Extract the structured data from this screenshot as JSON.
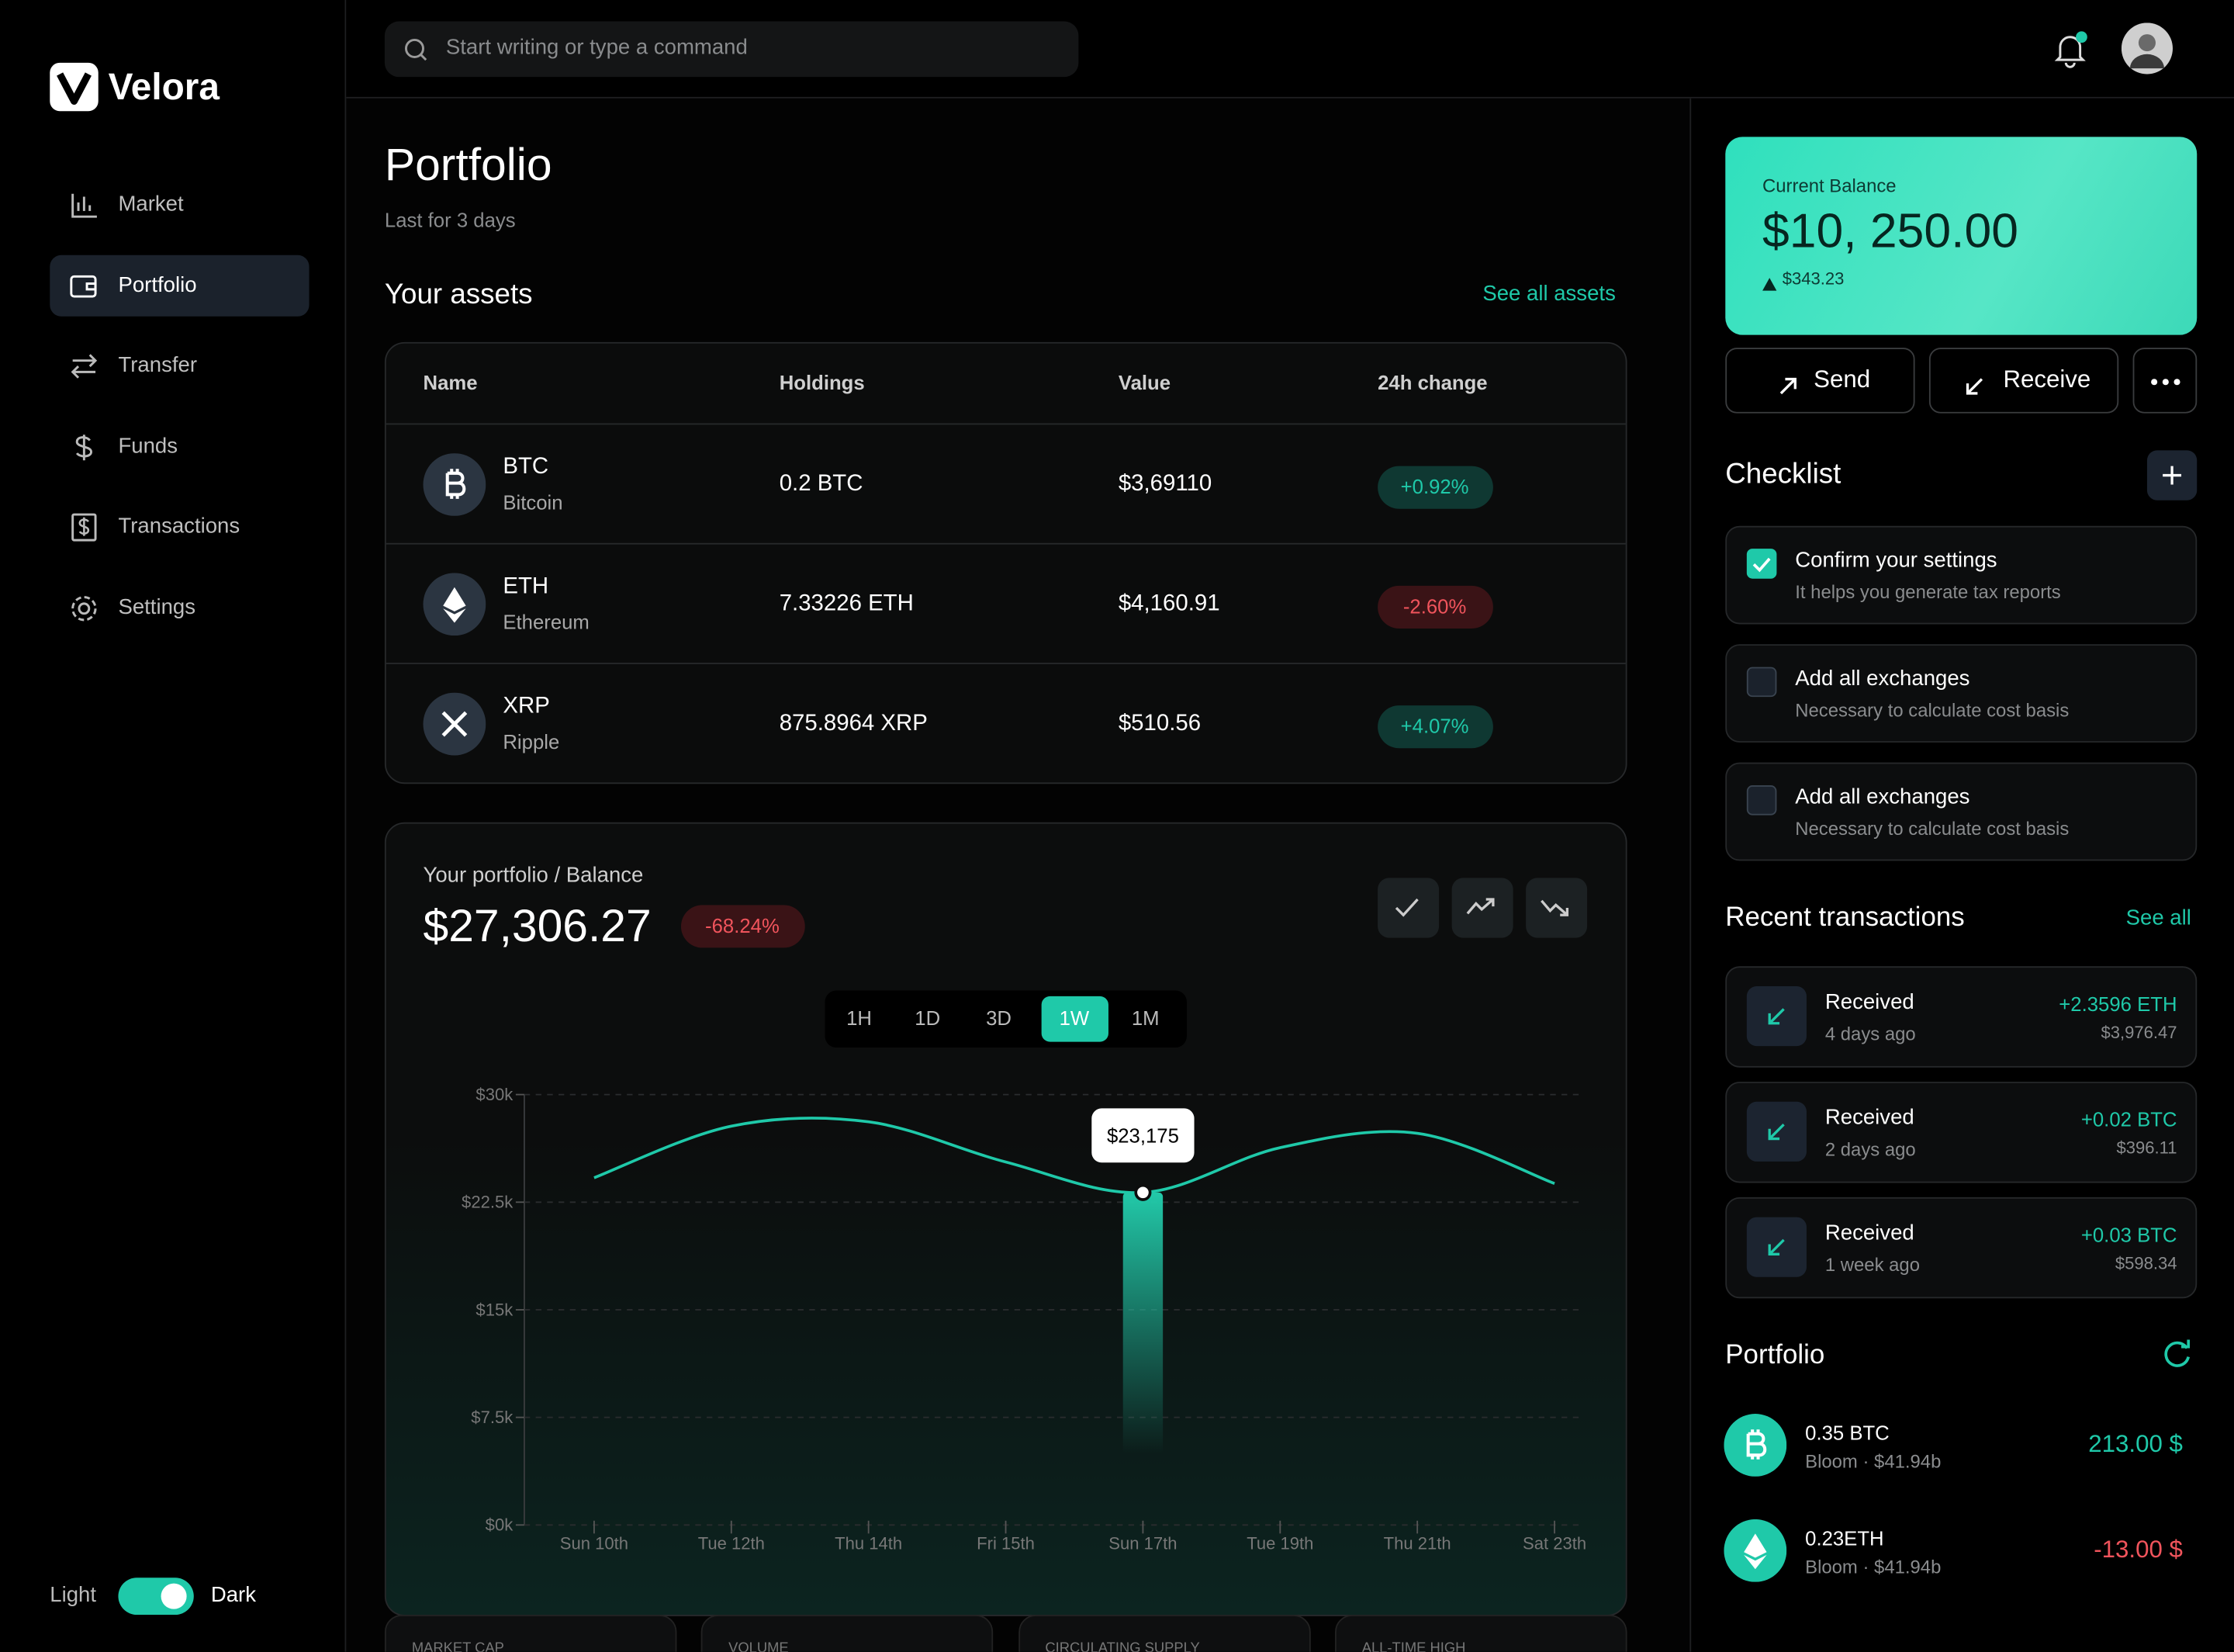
{
  "sidebar": {
    "brand": "Velora",
    "nav": [
      "Market",
      "Portfolio",
      "Transfer",
      "Funds",
      "Transactions",
      "Settings"
    ],
    "active": 1,
    "theme": {
      "light": "Light",
      "dark": "Dark"
    }
  },
  "header": {
    "search_placeholder": "Start writing or type a command"
  },
  "portfolio": {
    "title": "Portfolio",
    "subtitle": "Last for 3 days"
  },
  "assets": {
    "title": "Your assets",
    "link": "See all assets",
    "columns": [
      "Name",
      "Holdings",
      "Value",
      "24h change"
    ],
    "rows": [
      {
        "symbol": "BTC",
        "name": "Bitcoin",
        "holdings": "0.2 BTC",
        "value": "$3,69110",
        "change": "+0.92%"
      },
      {
        "symbol": "ETH",
        "name": "Ethereum",
        "holdings": "7.33226 ETH",
        "value": "$4,160.91",
        "change": "-2.60%"
      },
      {
        "symbol": "XRP",
        "name": "Ripple",
        "holdings": "875.8964 XRP",
        "value": "$510.56",
        "change": "+4.07%"
      }
    ]
  },
  "chart_data": {
    "type": "line",
    "label": "Your portfolio / Balance",
    "balance": "$27,306.27",
    "change": "-68.24%",
    "periods": [
      "1H",
      "1D",
      "3D",
      "1W",
      "1M"
    ],
    "active_period": 3,
    "categories": [
      "Sun 10th",
      "Tue 12th",
      "Thu 14th",
      "Fri 15th",
      "Sun 17th",
      "Tue 19th",
      "Thu 21th",
      "Sat 23th"
    ],
    "values": [
      24200,
      27800,
      28100,
      25300,
      23175,
      26300,
      27300,
      23800
    ],
    "value_labels": [
      null,
      null,
      null,
      null,
      "$23,175",
      null,
      null,
      null
    ],
    "color": "#1fc9a9",
    "highlight": 4,
    "ylim": [
      0,
      30000
    ],
    "yticks": [
      {
        "value": 0,
        "label": "$0k"
      },
      {
        "value": 7500,
        "label": "$7.5k"
      },
      {
        "value": 15000,
        "label": "$15k"
      },
      {
        "value": 22500,
        "label": "$22.5k"
      },
      {
        "value": 30000,
        "label": "$30k"
      }
    ],
    "grid": true
  },
  "stats": [
    "MARKET CAP",
    "VOLUME",
    "CIRCULATING SUPPLY",
    "ALL-TIME HIGH"
  ],
  "balance_card": {
    "label": "Current Balance",
    "amount": "$10, 250.00",
    "change": "$343.23"
  },
  "actions": [
    "Send",
    "Receive"
  ],
  "checklist": {
    "title": "Checklist",
    "items": [
      {
        "title": "Confirm your settings",
        "note": "It helps you generate tax reports",
        "checked": true
      },
      {
        "title": "Add all exchanges",
        "note": "Necessary to calculate cost basis",
        "checked": false
      },
      {
        "title": "Add all exchanges",
        "note": "Necessary to calculate cost basis",
        "checked": false
      }
    ]
  },
  "transactions": {
    "title": "Recent transactions",
    "link": "See all",
    "items": [
      {
        "type": "Received",
        "time": "4 days ago",
        "amount": "+2.3596 ETH",
        "usd": "$3,976.47"
      },
      {
        "type": "Received",
        "time": "2 days ago",
        "amount": "+0.02 BTC",
        "usd": "$396.11"
      },
      {
        "type": "Received",
        "time": "1 week ago",
        "amount": "+0.03 BTC",
        "usd": "$598.34"
      }
    ]
  },
  "holdings": {
    "title": "Portfolio",
    "items": [
      {
        "asset": "0.35 BTC",
        "source": "Bloom · $41.94b",
        "amount": "213.00 $"
      },
      {
        "asset": "0.23ETH",
        "source": "Bloom · $41.94b",
        "amount": "-13.00 $"
      }
    ]
  }
}
